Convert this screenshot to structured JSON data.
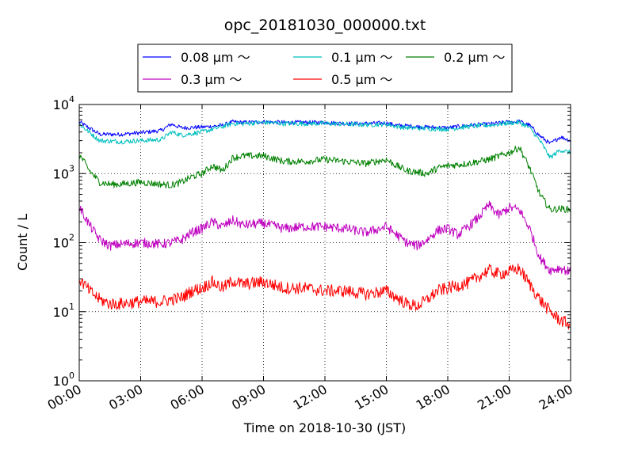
{
  "chart_data": {
    "type": "line",
    "title": "opc_20181030_000000.txt",
    "xlabel": "Time on 2018-10-30 (JST)",
    "ylabel": "Count / L",
    "x_ticks": [
      "00:00",
      "03:00",
      "06:00",
      "09:00",
      "12:00",
      "15:00",
      "18:00",
      "21:00",
      "24:00"
    ],
    "y_ticks": [
      {
        "base": "10",
        "exp": "0"
      },
      {
        "base": "10",
        "exp": "1"
      },
      {
        "base": "10",
        "exp": "2"
      },
      {
        "base": "10",
        "exp": "3"
      },
      {
        "base": "10",
        "exp": "4"
      }
    ],
    "yscale": "log",
    "xlim_hours": [
      0,
      24
    ],
    "ylim": [
      1,
      10000
    ],
    "grid": true,
    "legend_position": "top-center, above plot",
    "series": [
      {
        "name": "0.08 μm ～",
        "color": "#0000ff",
        "x": [
          0,
          1,
          2,
          3,
          4,
          4.5,
          5,
          6,
          7,
          7.5,
          8,
          9,
          10,
          11,
          12,
          13,
          14,
          15,
          15.5,
          16,
          17,
          18,
          19,
          20,
          21,
          21.5,
          22,
          22.5,
          23,
          23.5,
          24
        ],
        "values": [
          5600,
          3700,
          3700,
          3900,
          4200,
          5200,
          4600,
          4700,
          5000,
          5600,
          5500,
          5600,
          5500,
          5500,
          5500,
          5300,
          5300,
          5400,
          5000,
          4900,
          4700,
          4600,
          5000,
          5200,
          5600,
          5700,
          5000,
          3500,
          2700,
          3400,
          3000
        ]
      },
      {
        "name": "0.1 μm ～",
        "color": "#00bfbf",
        "x": [
          0,
          1,
          2,
          3,
          4,
          4.5,
          5,
          6,
          7,
          7.5,
          8,
          9,
          10,
          11,
          12,
          13,
          14,
          15,
          15.5,
          16,
          17,
          18,
          19,
          20,
          21,
          21.5,
          22,
          22.5,
          23,
          23.5,
          24
        ],
        "values": [
          5200,
          3000,
          2900,
          3000,
          3100,
          4000,
          3600,
          4000,
          4800,
          5300,
          5300,
          5500,
          5300,
          5300,
          5300,
          5200,
          5100,
          5200,
          4800,
          4600,
          4500,
          4400,
          4800,
          5000,
          5400,
          5500,
          4600,
          3000,
          1700,
          2200,
          2000
        ]
      },
      {
        "name": "0.2 μm ～",
        "color": "#008000",
        "x": [
          0,
          0.5,
          1,
          1.5,
          2,
          3,
          4,
          4.5,
          5,
          5.5,
          6,
          6.5,
          7,
          7.5,
          8,
          9,
          10,
          11,
          12,
          13,
          14,
          15,
          15.5,
          16,
          17,
          17.5,
          18,
          19,
          20,
          21,
          21.5,
          22,
          22.5,
          23,
          23.5,
          24
        ],
        "values": [
          1900,
          1100,
          750,
          700,
          700,
          750,
          700,
          680,
          750,
          900,
          1000,
          1300,
          1100,
          1700,
          1800,
          1800,
          1500,
          1500,
          1600,
          1500,
          1400,
          1600,
          1300,
          1100,
          1000,
          1200,
          1300,
          1400,
          1600,
          2000,
          2400,
          1200,
          500,
          300,
          310,
          300
        ]
      },
      {
        "name": "0.3 μm ～",
        "color": "#bf00bf",
        "x": [
          0,
          0.5,
          1,
          1.5,
          2,
          3,
          4,
          4.5,
          5,
          5.5,
          6,
          6.5,
          7,
          7.5,
          8,
          9,
          10,
          11,
          12,
          13,
          14,
          15,
          15.5,
          16,
          16.5,
          17,
          17.5,
          18,
          18.5,
          19,
          19.5,
          20,
          20.5,
          21,
          21.5,
          22,
          22.5,
          23,
          23.5,
          24
        ],
        "values": [
          330,
          180,
          110,
          90,
          95,
          100,
          95,
          100,
          110,
          140,
          160,
          200,
          170,
          210,
          180,
          190,
          160,
          170,
          170,
          160,
          140,
          170,
          130,
          100,
          90,
          110,
          150,
          160,
          130,
          170,
          230,
          350,
          250,
          320,
          300,
          160,
          60,
          40,
          43,
          37
        ]
      },
      {
        "name": "0.5 μm ～",
        "color": "#ff0000",
        "x": [
          0,
          0.5,
          1,
          1.5,
          2,
          3,
          4,
          4.5,
          5,
          5.5,
          6,
          6.5,
          7,
          7.5,
          8,
          9,
          10,
          11,
          12,
          13,
          14,
          15,
          15.5,
          16,
          16.5,
          17,
          17.5,
          18,
          19,
          20,
          20.5,
          21,
          21.5,
          22,
          22.5,
          23,
          23.5,
          24
        ],
        "values": [
          30,
          20,
          15,
          13,
          13,
          14,
          14,
          15,
          16,
          20,
          22,
          27,
          22,
          28,
          25,
          27,
          22,
          22,
          20,
          20,
          18,
          20,
          16,
          13,
          12,
          15,
          20,
          22,
          26,
          40,
          35,
          38,
          42,
          25,
          15,
          10,
          7.5,
          6.5
        ]
      }
    ]
  }
}
